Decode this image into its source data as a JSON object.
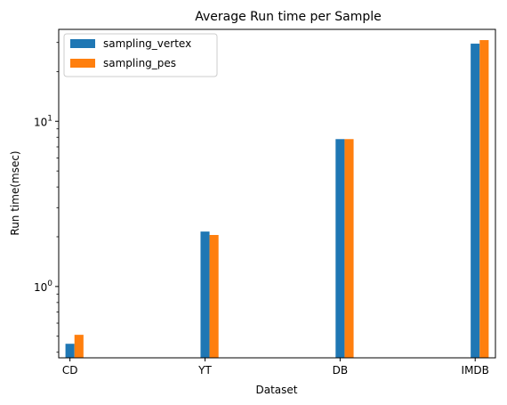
{
  "chart_data": {
    "type": "bar",
    "title": "Average Run time per Sample",
    "xlabel": "Dataset",
    "ylabel": "Run time(msec)",
    "yscale": "log",
    "ylim": [
      0.37,
      36
    ],
    "grid": false,
    "legend_position": "top-left",
    "categories": [
      "CD",
      "YT",
      "DB",
      "IMDB"
    ],
    "series": [
      {
        "name": "sampling_vertex",
        "color": "#1f77b4",
        "values": [
          0.45,
          2.15,
          7.8,
          29.5
        ]
      },
      {
        "name": "sampling_pes",
        "color": "#ff7f0e",
        "values": [
          0.51,
          2.05,
          7.8,
          31.0
        ]
      }
    ],
    "y_major_ticks": [
      {
        "value": 1,
        "base": "10",
        "exp": "0"
      },
      {
        "value": 10,
        "base": "10",
        "exp": "1"
      }
    ],
    "y_minor_ticks": [
      0.4,
      0.5,
      0.6,
      0.7,
      0.8,
      0.9,
      2,
      3,
      4,
      5,
      6,
      7,
      8,
      9,
      20,
      30
    ]
  }
}
